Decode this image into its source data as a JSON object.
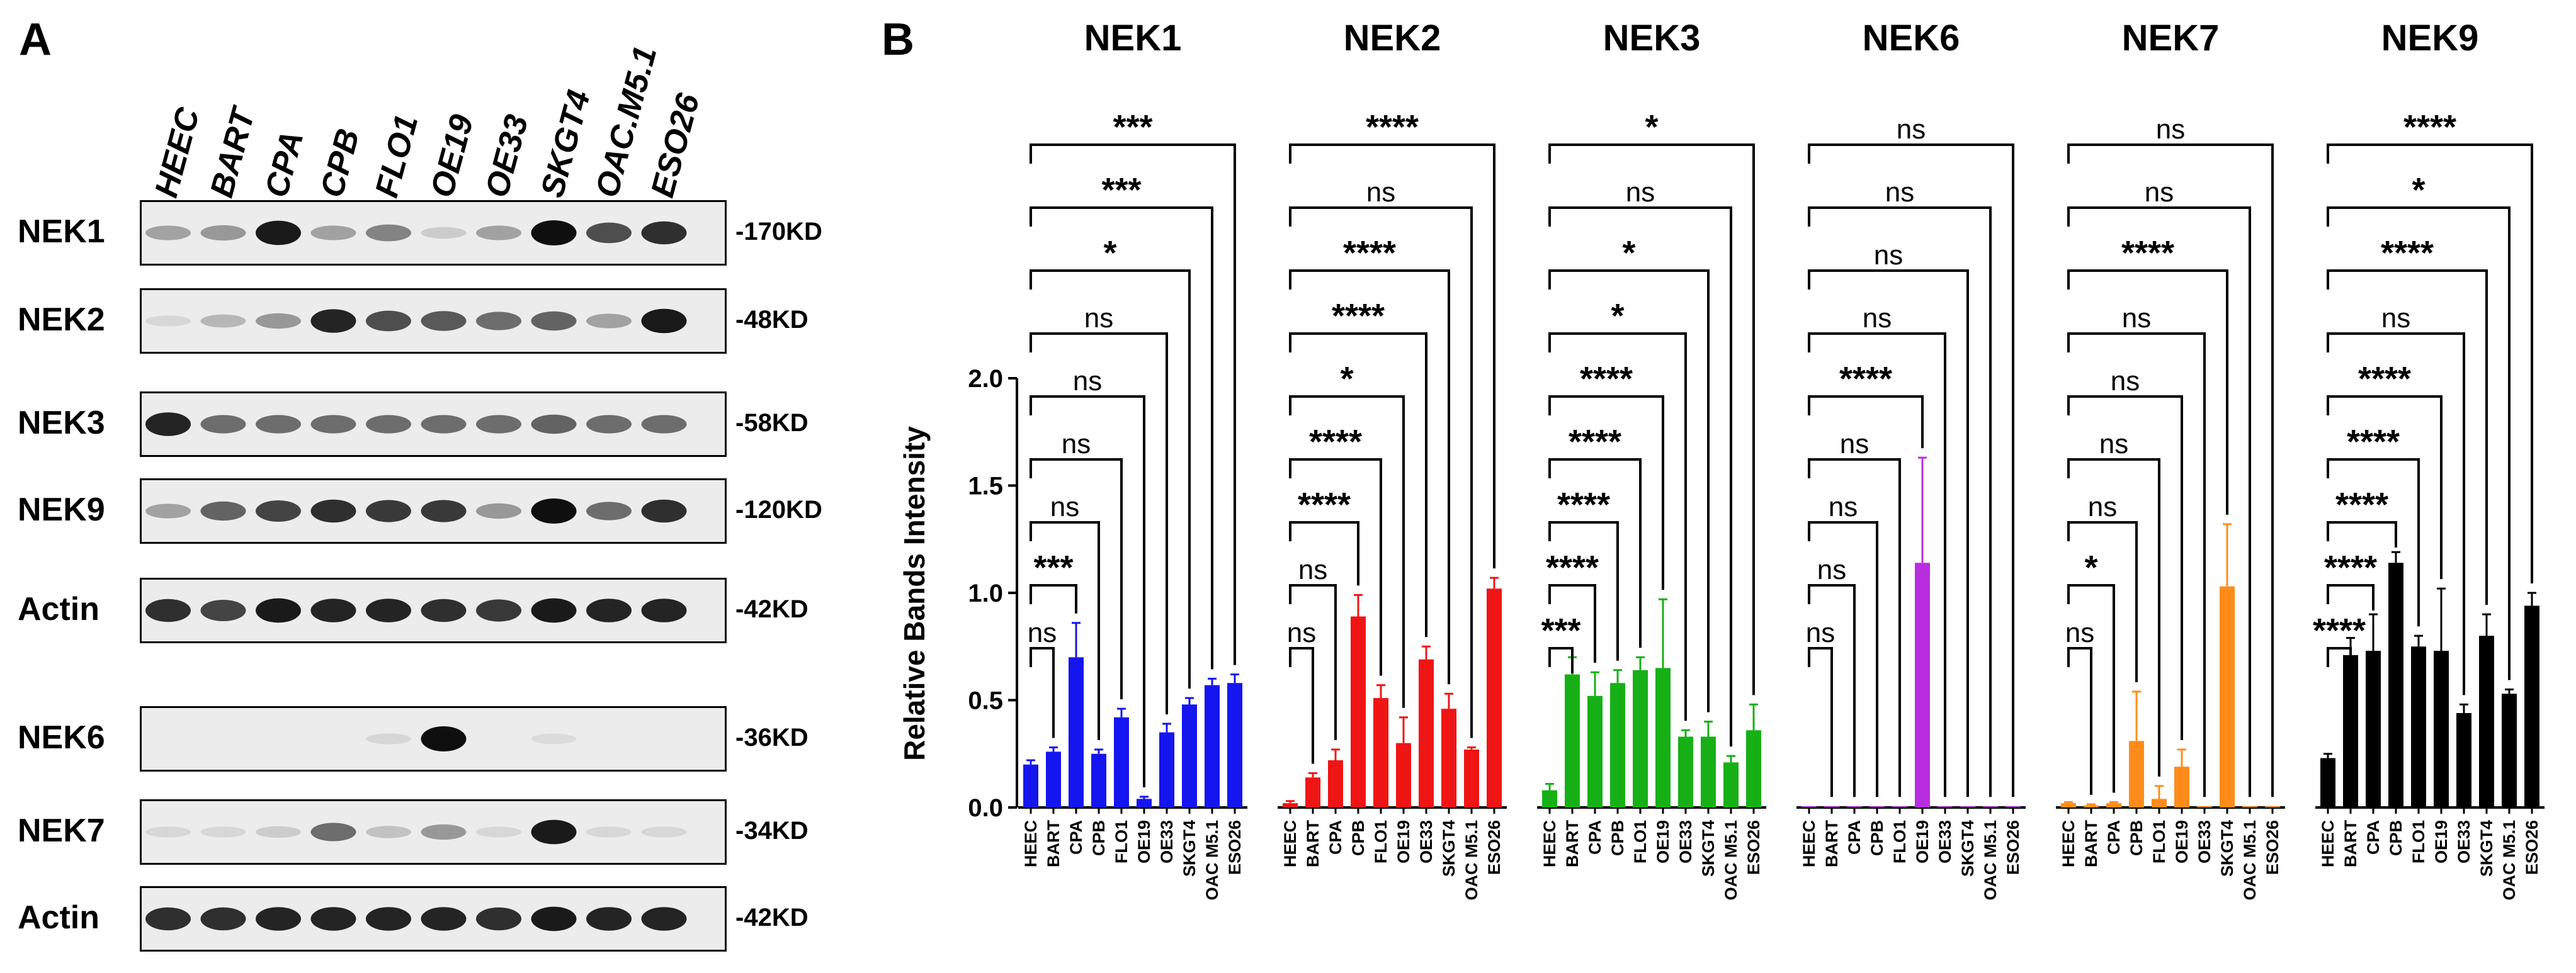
{
  "panel_a": {
    "letter": "A",
    "lanes": [
      "HEEC",
      "BART",
      "CPA",
      "CPB",
      "FLO1",
      "OE19",
      "OE33",
      "SKGT4",
      "OAC.M5.1",
      "ESO26"
    ],
    "blots": [
      {
        "protein": "NEK1",
        "mw": "-170KD",
        "intensity": [
          0.3,
          0.35,
          0.95,
          0.3,
          0.45,
          0.1,
          0.3,
          1.0,
          0.7,
          0.85
        ]
      },
      {
        "protein": "NEK2",
        "mw": "-48KD",
        "intensity": [
          0.05,
          0.2,
          0.35,
          0.9,
          0.7,
          0.65,
          0.55,
          0.6,
          0.3,
          0.95
        ]
      },
      {
        "protein": "NEK3",
        "mw": "-58KD",
        "intensity": [
          0.9,
          0.55,
          0.55,
          0.55,
          0.55,
          0.55,
          0.55,
          0.6,
          0.55,
          0.55
        ]
      },
      {
        "protein": "NEK9",
        "mw": "-120KD",
        "intensity": [
          0.3,
          0.6,
          0.75,
          0.85,
          0.8,
          0.8,
          0.35,
          1.0,
          0.55,
          0.85
        ]
      },
      {
        "protein": "Actin",
        "mw": "-42KD",
        "intensity": [
          0.85,
          0.75,
          0.95,
          0.9,
          0.9,
          0.85,
          0.8,
          0.95,
          0.9,
          0.9
        ]
      },
      {
        "protein": "NEK6",
        "mw": "-36KD",
        "intensity": [
          0.0,
          0.0,
          0.0,
          0.0,
          0.05,
          1.0,
          0.0,
          0.03,
          0.0,
          0.0
        ]
      },
      {
        "protein": "NEK7",
        "mw": "-34KD",
        "intensity": [
          0.05,
          0.05,
          0.1,
          0.55,
          0.15,
          0.35,
          0.05,
          0.95,
          0.05,
          0.05
        ]
      },
      {
        "protein": "Actin",
        "mw": "-42KD",
        "intensity": [
          0.85,
          0.85,
          0.9,
          0.9,
          0.9,
          0.9,
          0.85,
          0.95,
          0.9,
          0.9
        ]
      }
    ]
  },
  "panel_b": {
    "letter": "B",
    "colors": {
      "NEK1": "#1515f0",
      "NEK2": "#f01515",
      "NEK3": "#16b016",
      "NEK6": "#b82ee0",
      "NEK7": "#ff8c1a",
      "NEK9": "#000000"
    }
  },
  "chart_data": {
    "type": "bar",
    "ylabel": "Relative Bands Intensity",
    "ylim": [
      0,
      2.0
    ],
    "yticks": [
      "0.0",
      "0.5",
      "1.0",
      "1.5",
      "2.0"
    ],
    "categories": [
      "HEEC",
      "BART",
      "CPA",
      "CPB",
      "FLO1",
      "OE19",
      "OE33",
      "SKGT4",
      "OAC M5.1",
      "ESO26"
    ],
    "groups": [
      {
        "name": "NEK1",
        "color": "#1515f0",
        "values": [
          0.2,
          0.26,
          0.7,
          0.25,
          0.42,
          0.04,
          0.35,
          0.48,
          0.57,
          0.58
        ],
        "errors": [
          0.02,
          0.02,
          0.16,
          0.02,
          0.04,
          0.01,
          0.04,
          0.03,
          0.03,
          0.04
        ],
        "sig": [
          "***",
          "***",
          "*",
          "ns",
          "ns",
          "ns",
          "ns",
          "***",
          "ns"
        ]
      },
      {
        "name": "NEK2",
        "color": "#f01515",
        "values": [
          0.02,
          0.14,
          0.22,
          0.89,
          0.51,
          0.3,
          0.69,
          0.46,
          0.27,
          1.02
        ],
        "errors": [
          0.01,
          0.02,
          0.05,
          0.1,
          0.06,
          0.12,
          0.06,
          0.07,
          0.01,
          0.05
        ],
        "sig": [
          "****",
          "ns",
          "****",
          "****",
          "*",
          "****",
          "****",
          "ns",
          "ns"
        ]
      },
      {
        "name": "NEK3",
        "color": "#16b016",
        "values": [
          0.08,
          0.62,
          0.52,
          0.58,
          0.64,
          0.65,
          0.33,
          0.33,
          0.21,
          0.36
        ],
        "errors": [
          0.03,
          0.08,
          0.11,
          0.06,
          0.06,
          0.32,
          0.03,
          0.07,
          0.03,
          0.12
        ],
        "sig": [
          "*",
          "ns",
          "*",
          "*",
          "****",
          "****",
          "****",
          "****",
          "***"
        ]
      },
      {
        "name": "NEK6",
        "color": "#b82ee0",
        "values": [
          0.005,
          0.005,
          0.005,
          0.005,
          0.005,
          1.14,
          0.005,
          0.005,
          0.005,
          0.005
        ],
        "errors": [
          0.0,
          0.0,
          0.0,
          0.0,
          0.0,
          0.49,
          0.0,
          0.0,
          0.0,
          0.0
        ],
        "sig": [
          "ns",
          "ns",
          "ns",
          "ns",
          "****",
          "ns",
          "ns",
          "ns",
          "ns"
        ]
      },
      {
        "name": "NEK7",
        "color": "#ff8c1a",
        "values": [
          0.02,
          0.01,
          0.02,
          0.31,
          0.04,
          0.19,
          0.005,
          1.03,
          0.005,
          0.005
        ],
        "errors": [
          0.005,
          0.005,
          0.005,
          0.23,
          0.06,
          0.08,
          0.0,
          0.29,
          0.0,
          0.0
        ],
        "sig": [
          "ns",
          "ns",
          "****",
          "ns",
          "ns",
          "ns",
          "ns",
          "*",
          "ns"
        ]
      },
      {
        "name": "NEK9",
        "color": "#000000",
        "values": [
          0.23,
          0.71,
          0.73,
          1.14,
          0.75,
          0.73,
          0.44,
          0.8,
          0.53,
          0.94
        ],
        "errors": [
          0.02,
          0.08,
          0.17,
          0.05,
          0.05,
          0.29,
          0.04,
          0.1,
          0.02,
          0.06
        ],
        "sig": [
          "****",
          "*",
          "****",
          "ns",
          "****",
          "****",
          "****",
          "****",
          "****"
        ]
      }
    ]
  }
}
